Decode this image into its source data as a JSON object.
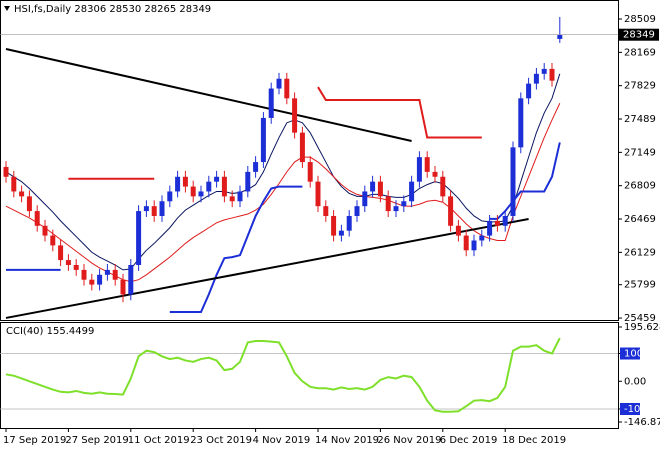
{
  "chart_data": [
    {
      "type": "candlestick",
      "title": "HSI,fs,Daily  28306 28530 28265 28349",
      "last_price": 28349,
      "up_color": "#1c2fd6",
      "down_color": "#e01b1b",
      "categories": [
        "17 Sep 2019",
        null,
        null,
        null,
        null,
        null,
        null,
        null,
        "27 Sep 2019",
        null,
        null,
        null,
        null,
        null,
        null,
        null,
        "11 Oct 2019",
        null,
        null,
        null,
        null,
        null,
        null,
        null,
        "23 Oct 2019",
        null,
        null,
        null,
        null,
        null,
        null,
        null,
        "4 Nov 2019",
        null,
        null,
        null,
        null,
        null,
        null,
        null,
        "14 Nov 2019",
        null,
        null,
        null,
        null,
        null,
        null,
        null,
        "26 Nov 2019",
        null,
        null,
        null,
        null,
        null,
        null,
        null,
        "6 Dec 2019",
        null,
        null,
        null,
        null,
        null,
        null,
        null,
        "18 Dec 2019",
        null,
        null,
        null,
        null,
        null,
        null,
        null
      ],
      "open": [
        27000,
        26900,
        26750,
        26700,
        26550,
        26400,
        26300,
        26200,
        26050,
        26000,
        25950,
        25850,
        25800,
        25900,
        25950,
        25850,
        25700,
        26000,
        26550,
        26600,
        26500,
        26650,
        26750,
        26900,
        26800,
        26700,
        26750,
        26850,
        26900,
        26700,
        26650,
        26750,
        26950,
        27050,
        27500,
        27800,
        27900,
        27700,
        27350,
        27050,
        26850,
        26600,
        26500,
        26300,
        26350,
        26500,
        26600,
        26750,
        26850,
        26700,
        26550,
        26600,
        26650,
        26850,
        27100,
        26950,
        26900,
        26700,
        26400,
        26300,
        26150,
        26250,
        26300,
        26450,
        26400,
        26500,
        27200,
        27700,
        27850,
        27950,
        28000,
        28306
      ],
      "high": [
        27060,
        26960,
        26810,
        26760,
        26610,
        26460,
        26360,
        26260,
        26110,
        26060,
        26010,
        25910,
        25960,
        26010,
        26010,
        25910,
        26060,
        26610,
        26660,
        26660,
        26710,
        26810,
        26960,
        26960,
        26860,
        26810,
        26910,
        26960,
        26960,
        26760,
        26810,
        27010,
        27110,
        27560,
        27860,
        27960,
        27960,
        27760,
        27410,
        27110,
        26910,
        26660,
        26560,
        26410,
        26560,
        26660,
        26810,
        26910,
        26910,
        26760,
        26660,
        26710,
        26910,
        27160,
        27160,
        27010,
        26960,
        26760,
        26460,
        26360,
        26310,
        26360,
        26510,
        26510,
        26560,
        27260,
        27760,
        27910,
        28010,
        28060,
        28060,
        28530
      ],
      "low": [
        26840,
        26690,
        26640,
        26490,
        26340,
        26240,
        26140,
        25990,
        25940,
        25890,
        25790,
        25740,
        25740,
        25840,
        25790,
        25620,
        25640,
        25940,
        26490,
        26440,
        26440,
        26590,
        26690,
        26740,
        26640,
        26640,
        26690,
        26790,
        26640,
        26590,
        26590,
        26690,
        26890,
        26990,
        27440,
        27740,
        27640,
        27290,
        26990,
        26790,
        26540,
        26440,
        26240,
        26240,
        26290,
        26440,
        26540,
        26690,
        26640,
        26490,
        26490,
        26540,
        26590,
        26790,
        26890,
        26840,
        26640,
        26340,
        26240,
        26090,
        26090,
        26190,
        26240,
        26340,
        26340,
        26440,
        27140,
        27640,
        27790,
        27890,
        27820,
        28265
      ],
      "close": [
        26900,
        26750,
        26700,
        26550,
        26400,
        26300,
        26200,
        26050,
        26000,
        25950,
        25850,
        25800,
        25900,
        25950,
        25850,
        25700,
        26000,
        26550,
        26600,
        26500,
        26650,
        26750,
        26900,
        26800,
        26700,
        26750,
        26850,
        26900,
        26700,
        26650,
        26750,
        26950,
        27050,
        27500,
        27800,
        27900,
        27700,
        27350,
        27050,
        26850,
        26600,
        26500,
        26300,
        26350,
        26500,
        26600,
        26750,
        26850,
        26700,
        26550,
        26600,
        26650,
        26850,
        27100,
        26950,
        26900,
        26700,
        26400,
        26300,
        26150,
        26250,
        26300,
        26450,
        26400,
        26500,
        27200,
        27700,
        27850,
        27950,
        28000,
        27880,
        28349
      ],
      "series": [
        {
          "color": "#0a1560",
          "width": 1,
          "values": [
            26950,
            26900,
            26850,
            26780,
            26700,
            26620,
            26540,
            26450,
            26370,
            26290,
            26210,
            26130,
            26080,
            26040,
            26000,
            25950,
            25960,
            26060,
            26150,
            26220,
            26300,
            26380,
            26480,
            26560,
            26610,
            26660,
            26710,
            26750,
            26750,
            26730,
            26740,
            26770,
            26820,
            26950,
            27130,
            27300,
            27450,
            27480,
            27450,
            27350,
            27200,
            27050,
            26900,
            26800,
            26730,
            26700,
            26700,
            26720,
            26720,
            26700,
            26690,
            26690,
            26720,
            26780,
            26820,
            26850,
            26830,
            26760,
            26680,
            26580,
            26500,
            26450,
            26440,
            26440,
            26450,
            26600,
            26850,
            27100,
            27350,
            27550,
            27700,
            27950
          ]
        },
        {
          "color": "#e01b1b",
          "width": 1,
          "values": [
            26600,
            26560,
            26520,
            26480,
            26430,
            26380,
            26320,
            26260,
            26200,
            26140,
            26080,
            26020,
            25970,
            25930,
            25890,
            25850,
            25830,
            25850,
            25900,
            25960,
            26020,
            26080,
            26150,
            26220,
            26280,
            26330,
            26380,
            26430,
            26460,
            26480,
            26500,
            26520,
            26560,
            26620,
            26720,
            26830,
            26950,
            27050,
            27100,
            27100,
            27050,
            26980,
            26900,
            26820,
            26760,
            26720,
            26700,
            26690,
            26680,
            26660,
            26630,
            26600,
            26600,
            26620,
            26650,
            26660,
            26640,
            26580,
            26500,
            26420,
            26350,
            26300,
            26270,
            26250,
            26250,
            26500,
            26700,
            26900,
            27100,
            27300,
            27480,
            27650
          ]
        },
        {
          "color": "#e01b1b",
          "width": 2,
          "values": [
            null,
            null,
            null,
            null,
            null,
            null,
            null,
            null,
            26880,
            26880,
            26880,
            26880,
            26880,
            26880,
            26880,
            26880,
            26880,
            26880,
            26880,
            26880,
            null,
            null,
            null,
            null,
            null,
            null,
            null,
            null,
            null,
            null,
            null,
            null,
            null,
            null,
            null,
            null,
            null,
            null,
            null,
            null,
            27815,
            27683,
            27683,
            27683,
            27683,
            27683,
            27683,
            27683,
            27683,
            27683,
            27683,
            27683,
            27683,
            27683,
            27300,
            27300,
            27300,
            27300,
            27300,
            27300,
            27300,
            27300,
            null,
            null,
            null,
            null,
            null,
            null,
            null,
            null,
            null,
            null
          ]
        },
        {
          "color": "#1c2fd6",
          "width": 2,
          "values": [
            25950,
            25950,
            25950,
            25950,
            25950,
            25950,
            25950,
            25950,
            null,
            null,
            null,
            null,
            null,
            null,
            null,
            null,
            null,
            null,
            null,
            null,
            null,
            25520,
            25520,
            25520,
            25520,
            25520,
            25700,
            25900,
            26070,
            26080,
            26100,
            26300,
            26500,
            26650,
            26780,
            26800,
            26800,
            26800,
            26800,
            null,
            null,
            null,
            null,
            null,
            null,
            null,
            null,
            null,
            null,
            null,
            null,
            null,
            null,
            null,
            null,
            null,
            null,
            null,
            null,
            null,
            null,
            null,
            26470,
            26470,
            26550,
            26650,
            26750,
            26750,
            26750,
            26750,
            26900,
            27250
          ]
        }
      ],
      "trendlines": [
        {
          "color": "#000000",
          "x": [
            0,
            52
          ],
          "y": [
            28203,
            27265
          ]
        },
        {
          "color": "#000000",
          "x": [
            0,
            67
          ],
          "y": [
            25460,
            26469
          ]
        }
      ],
      "ylim": [
        25439,
        28703
      ],
      "yticks": [
        28509,
        28169,
        27829,
        27489,
        27149,
        26809,
        26469,
        26129,
        25799,
        25459
      ]
    },
    {
      "type": "line",
      "title": "CCI(40) 155.4499",
      "color": "#7ee02a",
      "values": [
        25,
        20,
        10,
        0,
        -10,
        -20,
        -30,
        -38,
        -40,
        -35,
        -42,
        -45,
        -40,
        -45,
        -46,
        -48,
        10,
        90,
        110,
        105,
        90,
        80,
        85,
        75,
        70,
        80,
        85,
        75,
        40,
        45,
        70,
        140,
        145,
        145,
        143,
        140,
        90,
        30,
        0,
        -20,
        -25,
        -25,
        -30,
        -22,
        -28,
        -25,
        -30,
        -20,
        5,
        15,
        10,
        20,
        15,
        -20,
        -70,
        -105,
        -110,
        -110,
        -108,
        -90,
        -70,
        -68,
        -72,
        -60,
        -20,
        110,
        125,
        125,
        130,
        110,
        100,
        155.4499
      ],
      "levels": [
        100,
        -100
      ],
      "ylim": [
        -168.5,
        213.6
      ],
      "yticks": [
        195.6284,
        100,
        {
          "value": 0,
          "label": "0.00"
        },
        -100,
        -146.876
      ]
    }
  ]
}
